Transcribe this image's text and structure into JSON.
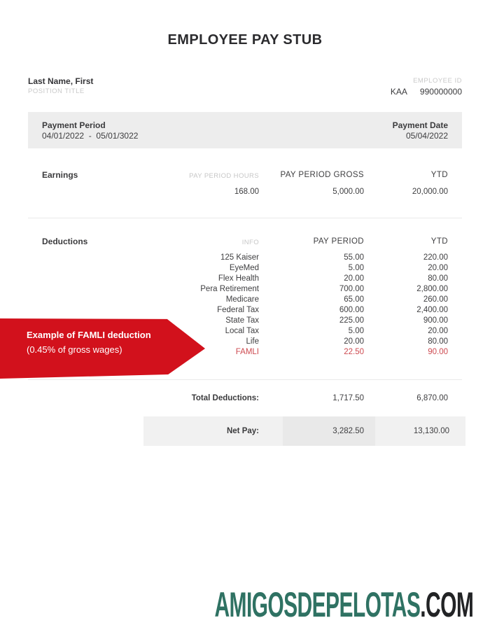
{
  "title": "EMPLOYEE PAY STUB",
  "employee": {
    "name": "Last Name, First",
    "position_label": "POSITION TITLE",
    "id_label": "EMPLOYEE ID",
    "id_prefix": "KAA",
    "id_number": "990000000"
  },
  "payment": {
    "period_label": "Payment Period",
    "period_value": "04/01/2022  -  05/01/3022",
    "date_label": "Payment Date",
    "date_value": "05/04/2022"
  },
  "earnings": {
    "section_label": "Earnings",
    "columns": [
      "PAY PERIOD HOURS",
      "PAY PERIOD GROSS",
      "YTD"
    ],
    "values": [
      "168.00",
      "5,000.00",
      "20,000.00"
    ]
  },
  "deductions": {
    "section_label": "Deductions",
    "columns": [
      "INFO",
      "PAY PERIOD",
      "YTD"
    ],
    "rows": [
      {
        "name": "125 Kaiser",
        "pay_period": "55.00",
        "ytd": "220.00",
        "highlight": false
      },
      {
        "name": "EyeMed",
        "pay_period": "5.00",
        "ytd": "20.00",
        "highlight": false
      },
      {
        "name": "Flex Health",
        "pay_period": "20.00",
        "ytd": "80.00",
        "highlight": false
      },
      {
        "name": "Pera Retirement",
        "pay_period": "700.00",
        "ytd": "2,800.00",
        "highlight": false
      },
      {
        "name": "Medicare",
        "pay_period": "65.00",
        "ytd": "260.00",
        "highlight": false
      },
      {
        "name": "Federal Tax",
        "pay_period": "600.00",
        "ytd": "2,400.00",
        "highlight": false
      },
      {
        "name": "State Tax",
        "pay_period": "225.00",
        "ytd": "900.00",
        "highlight": false
      },
      {
        "name": "Local Tax",
        "pay_period": "5.00",
        "ytd": "20.00",
        "highlight": false
      },
      {
        "name": "Life",
        "pay_period": "20.00",
        "ytd": "80.00",
        "highlight": false
      },
      {
        "name": "FAMLI",
        "pay_period": "22.50",
        "ytd": "90.00",
        "highlight": true
      }
    ],
    "total_label": "Total Deductions:",
    "total_pay_period": "1,717.50",
    "total_ytd": "6,870.00"
  },
  "net_pay": {
    "label": "Net Pay:",
    "pay_period": "3,282.50",
    "ytd": "13,130.00"
  },
  "callout": {
    "line1": "Example of FAMLI deduction",
    "line2": "(0.45% of gross wages)"
  },
  "footer": {
    "brand": "AMIGOSDEPELOTAS",
    "tld": ".COM"
  },
  "colors": {
    "accent_red": "#d2111c",
    "famli_red": "#cd4a50",
    "brand_teal": "#2f7263",
    "box_gray": "#ededed",
    "label_gray": "#c6c6c6"
  }
}
